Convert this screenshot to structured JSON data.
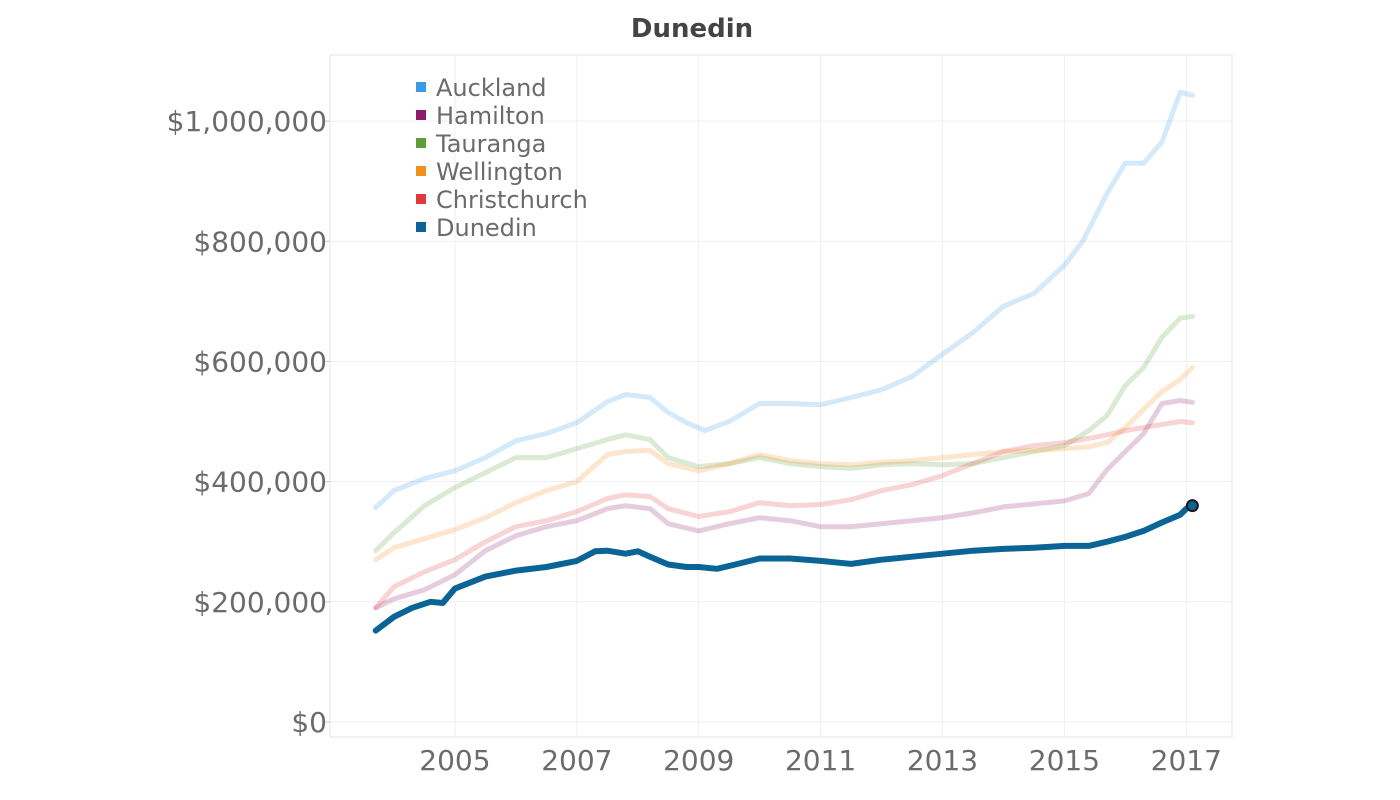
{
  "chart_data": {
    "type": "line",
    "title": "Dunedin",
    "xlabel": "",
    "ylabel": "",
    "x_ticks": [
      "2005",
      "2007",
      "2009",
      "2011",
      "2013",
      "2015",
      "2017"
    ],
    "x_tick_values": [
      2005,
      2007,
      2009,
      2011,
      2013,
      2015,
      2017
    ],
    "y_ticks": [
      "$0",
      "$200,000",
      "$400,000",
      "$600,000",
      "$800,000",
      "$1,000,000"
    ],
    "y_tick_values": [
      0,
      200000,
      400000,
      600000,
      800000,
      1000000
    ],
    "xlim": [
      2002.95,
      2017.75
    ],
    "ylim": [
      -25000,
      1110000
    ],
    "grid": true,
    "legend_position": "top-left",
    "highlighted_series": "Dunedin",
    "series": [
      {
        "name": "Auckland",
        "color": "#3A9AE8",
        "x": [
          2003.7,
          2004.0,
          2004.5,
          2005.0,
          2005.5,
          2006.0,
          2006.5,
          2007.0,
          2007.5,
          2007.8,
          2008.2,
          2008.5,
          2008.8,
          2009.1,
          2009.5,
          2010.0,
          2010.5,
          2011.0,
          2011.5,
          2012.0,
          2012.5,
          2013.0,
          2013.5,
          2014.0,
          2014.5,
          2015.0,
          2015.3,
          2015.7,
          2016.0,
          2016.3,
          2016.6,
          2016.9,
          2017.1
        ],
        "values": [
          357000,
          385000,
          405000,
          418000,
          440000,
          468000,
          480000,
          498000,
          533000,
          545000,
          540000,
          515000,
          498000,
          485000,
          500000,
          530000,
          530000,
          528000,
          540000,
          553000,
          575000,
          612000,
          648000,
          692000,
          713000,
          760000,
          800000,
          880000,
          930000,
          930000,
          965000,
          1048000,
          1043000
        ]
      },
      {
        "name": "Hamilton",
        "color": "#8E1B6B",
        "x": [
          2003.7,
          2004.0,
          2004.5,
          2005.0,
          2005.5,
          2006.0,
          2006.5,
          2007.0,
          2007.5,
          2007.8,
          2008.2,
          2008.5,
          2009.0,
          2009.5,
          2010.0,
          2010.5,
          2011.0,
          2011.5,
          2012.0,
          2012.5,
          2013.0,
          2013.5,
          2014.0,
          2014.5,
          2015.0,
          2015.4,
          2015.7,
          2016.0,
          2016.3,
          2016.6,
          2016.9,
          2017.1
        ],
        "values": [
          190000,
          205000,
          220000,
          245000,
          285000,
          310000,
          325000,
          335000,
          355000,
          360000,
          355000,
          330000,
          318000,
          330000,
          340000,
          335000,
          325000,
          325000,
          330000,
          335000,
          340000,
          348000,
          358000,
          363000,
          368000,
          380000,
          420000,
          450000,
          480000,
          530000,
          535000,
          532000
        ]
      },
      {
        "name": "Tauranga",
        "color": "#5C9E3A",
        "x": [
          2003.7,
          2004.0,
          2004.5,
          2005.0,
          2005.5,
          2006.0,
          2006.5,
          2007.0,
          2007.5,
          2007.8,
          2008.2,
          2008.5,
          2009.0,
          2009.5,
          2010.0,
          2010.5,
          2011.0,
          2011.5,
          2012.0,
          2012.5,
          2013.0,
          2013.5,
          2014.0,
          2014.5,
          2015.0,
          2015.4,
          2015.7,
          2016.0,
          2016.3,
          2016.6,
          2016.9,
          2017.1
        ],
        "values": [
          285000,
          315000,
          360000,
          390000,
          415000,
          440000,
          440000,
          455000,
          470000,
          478000,
          470000,
          440000,
          425000,
          430000,
          440000,
          430000,
          425000,
          422000,
          428000,
          430000,
          428000,
          430000,
          440000,
          450000,
          460000,
          485000,
          510000,
          560000,
          590000,
          640000,
          672000,
          675000
        ]
      },
      {
        "name": "Wellington",
        "color": "#F28E1C",
        "x": [
          2003.7,
          2004.0,
          2004.5,
          2005.0,
          2005.5,
          2006.0,
          2006.5,
          2007.0,
          2007.5,
          2007.8,
          2008.2,
          2008.5,
          2009.0,
          2009.5,
          2010.0,
          2010.5,
          2011.0,
          2011.5,
          2012.0,
          2012.5,
          2013.0,
          2013.5,
          2014.0,
          2014.5,
          2015.0,
          2015.4,
          2015.7,
          2016.0,
          2016.3,
          2016.6,
          2016.9,
          2017.1
        ],
        "values": [
          270000,
          290000,
          305000,
          320000,
          340000,
          365000,
          385000,
          400000,
          445000,
          450000,
          452000,
          430000,
          418000,
          430000,
          445000,
          435000,
          430000,
          428000,
          432000,
          435000,
          440000,
          445000,
          450000,
          452000,
          455000,
          458000,
          465000,
          490000,
          520000,
          550000,
          570000,
          590000
        ]
      },
      {
        "name": "Christchurch",
        "color": "#E03A3A",
        "x": [
          2003.7,
          2004.0,
          2004.5,
          2005.0,
          2005.5,
          2006.0,
          2006.5,
          2007.0,
          2007.5,
          2007.8,
          2008.2,
          2008.5,
          2009.0,
          2009.5,
          2010.0,
          2010.5,
          2011.0,
          2011.5,
          2012.0,
          2012.5,
          2013.0,
          2013.5,
          2014.0,
          2014.5,
          2015.0,
          2015.4,
          2015.7,
          2016.0,
          2016.3,
          2016.6,
          2016.9,
          2017.1
        ],
        "values": [
          190000,
          225000,
          250000,
          270000,
          300000,
          325000,
          335000,
          350000,
          372000,
          378000,
          375000,
          355000,
          342000,
          350000,
          365000,
          360000,
          362000,
          370000,
          385000,
          395000,
          410000,
          430000,
          450000,
          460000,
          465000,
          472000,
          478000,
          485000,
          490000,
          495000,
          500000,
          498000
        ]
      },
      {
        "name": "Dunedin",
        "color": "#0B6496",
        "x": [
          2003.7,
          2004.0,
          2004.3,
          2004.6,
          2004.8,
          2005.0,
          2005.5,
          2006.0,
          2006.5,
          2007.0,
          2007.3,
          2007.5,
          2007.8,
          2008.0,
          2008.2,
          2008.5,
          2008.8,
          2009.0,
          2009.3,
          2009.6,
          2010.0,
          2010.5,
          2011.0,
          2011.3,
          2011.5,
          2012.0,
          2012.5,
          2013.0,
          2013.5,
          2014.0,
          2014.5,
          2015.0,
          2015.4,
          2015.7,
          2016.0,
          2016.3,
          2016.6,
          2016.9,
          2017.0,
          2017.1
        ],
        "values": [
          152000,
          175000,
          190000,
          200000,
          198000,
          222000,
          242000,
          252000,
          258000,
          268000,
          284000,
          285000,
          280000,
          284000,
          275000,
          262000,
          258000,
          258000,
          255000,
          262000,
          272000,
          272000,
          268000,
          265000,
          263000,
          270000,
          275000,
          280000,
          285000,
          288000,
          290000,
          293000,
          293000,
          300000,
          308000,
          318000,
          332000,
          345000,
          355000,
          360000
        ]
      }
    ]
  }
}
